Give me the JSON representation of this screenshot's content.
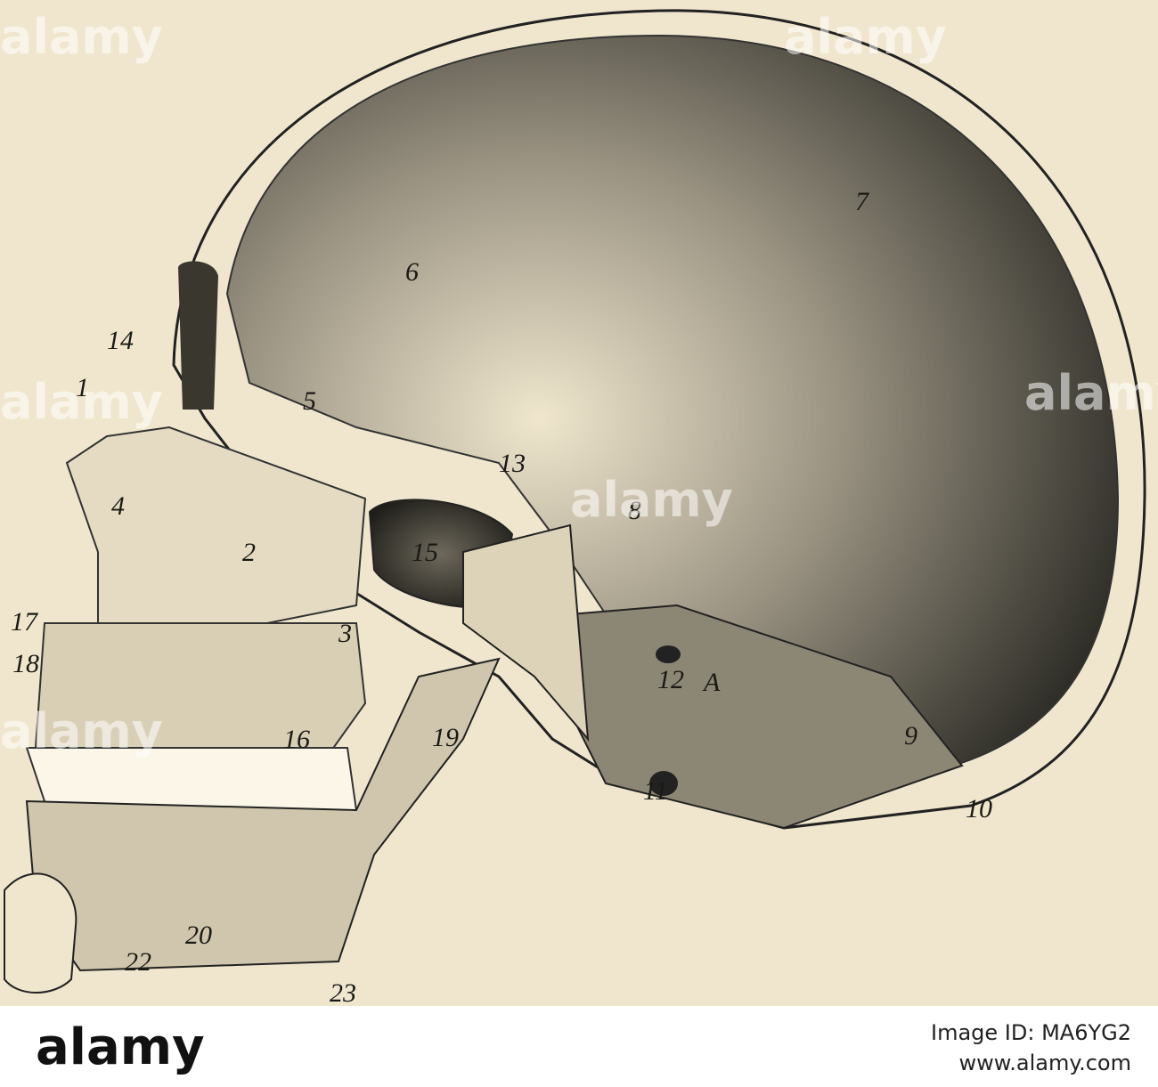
{
  "figure": {
    "labels": [
      "14",
      "1",
      "5",
      "6",
      "7",
      "4",
      "2",
      "13",
      "8",
      "15",
      "17",
      "18",
      "3",
      "12",
      "A",
      "16",
      "19",
      "9",
      "11",
      "10",
      "20",
      "22",
      "23"
    ]
  },
  "watermarks": [
    "alamy",
    "alamy",
    "alamy",
    "alamy",
    "alamy",
    "alamy"
  ],
  "footer": {
    "logo": "alamy",
    "image_id": "Image ID: MA6YG2",
    "url": "www.alamy.com"
  }
}
